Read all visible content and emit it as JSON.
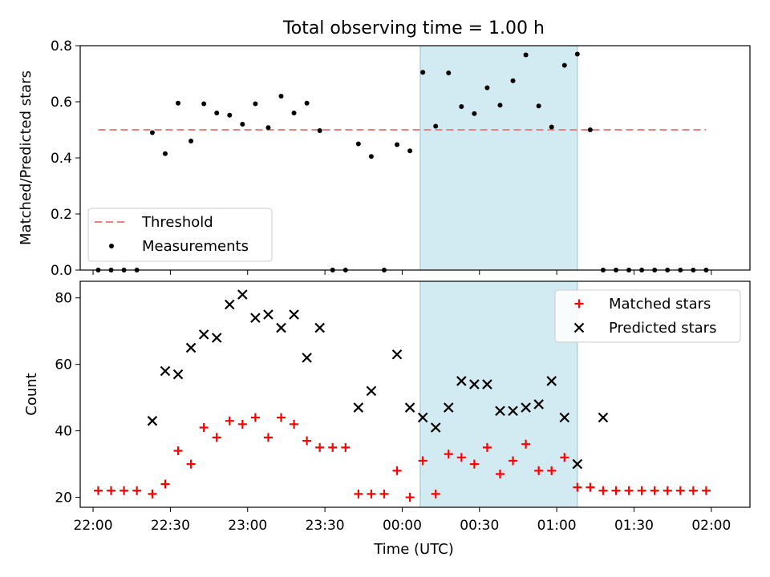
{
  "figure": {
    "title": "Total observing time = 1.00 h",
    "xlabel": "Time (UTC)",
    "x_tick_labels": [
      "22:00",
      "22:30",
      "23:00",
      "23:30",
      "00:00",
      "00:30",
      "01:00",
      "01:30",
      "02:00"
    ]
  },
  "colors": {
    "threshold": "#f08080",
    "measurement": "#000000",
    "matched": "#ff0000",
    "predicted": "#000000",
    "shade": "#add8e6"
  },
  "chart_data": [
    {
      "type": "scatter",
      "panel": "top",
      "title": "Total observing time = 1.00 h",
      "ylabel": "Matched/Predicted stars",
      "xlabel": "",
      "x_unit": "minutes after 22:00 UTC",
      "xlim": [
        -5,
        255
      ],
      "ylim": [
        0,
        0.8
      ],
      "y_ticks": [
        "0.0",
        "0.2",
        "0.4",
        "0.6",
        "0.8"
      ],
      "shaded_interval": [
        127,
        188
      ],
      "legend": {
        "position": "lower left",
        "entries": [
          "Threshold",
          "Measurements"
        ]
      },
      "series": [
        {
          "name": "Threshold",
          "style": "dashed line",
          "x": [
            2,
            238
          ],
          "y": [
            0.5,
            0.5
          ]
        },
        {
          "name": "Measurements",
          "style": "points",
          "x": [
            2,
            7,
            12,
            17,
            23,
            28,
            33,
            38,
            43,
            48,
            53,
            58,
            63,
            68,
            73,
            78,
            83,
            88,
            93,
            98,
            103,
            108,
            113,
            118,
            123,
            128,
            133,
            138,
            143,
            148,
            153,
            158,
            163,
            168,
            173,
            178,
            183,
            188,
            193,
            198,
            203,
            208,
            213,
            218,
            223,
            228,
            233,
            238
          ],
          "y": [
            0,
            0,
            0,
            0,
            0.49,
            0.415,
            0.595,
            0.46,
            0.593,
            0.56,
            0.552,
            0.52,
            0.593,
            0.508,
            0.62,
            0.56,
            0.595,
            0.497,
            0,
            0,
            0.45,
            0.405,
            0,
            0.447,
            0.425,
            0.705,
            0.513,
            0.703,
            0.583,
            0.558,
            0.65,
            0.588,
            0.675,
            0.767,
            0.585,
            0.51,
            0.73,
            0.77,
            0.5,
            0,
            0,
            0,
            0,
            0,
            0,
            0,
            0,
            0
          ]
        }
      ]
    },
    {
      "type": "scatter",
      "panel": "bottom",
      "ylabel": "Count",
      "xlabel": "Time (UTC)",
      "x_unit": "minutes after 22:00 UTC",
      "xlim": [
        -5,
        255
      ],
      "ylim": [
        17,
        85
      ],
      "y_ticks": [
        "20",
        "40",
        "60",
        "80"
      ],
      "shaded_interval": [
        127,
        188
      ],
      "legend": {
        "position": "upper right",
        "entries": [
          "Matched stars",
          "Predicted stars"
        ]
      },
      "series": [
        {
          "name": "Matched stars",
          "marker": "plus",
          "x": [
            2,
            7,
            12,
            17,
            23,
            28,
            33,
            38,
            43,
            48,
            53,
            58,
            63,
            68,
            73,
            78,
            83,
            88,
            93,
            98,
            103,
            108,
            113,
            118,
            123,
            128,
            133,
            138,
            143,
            148,
            153,
            158,
            163,
            168,
            173,
            178,
            183,
            188,
            193,
            198,
            203,
            208,
            213,
            218,
            223,
            228,
            233,
            238
          ],
          "y": [
            22,
            22,
            22,
            22,
            21,
            24,
            34,
            30,
            41,
            38,
            43,
            42,
            44,
            38,
            44,
            42,
            37,
            35,
            35,
            35,
            21,
            21,
            21,
            28,
            20,
            31,
            21,
            33,
            32,
            30,
            35,
            27,
            31,
            36,
            28,
            28,
            32,
            23,
            23,
            22,
            22,
            22,
            22,
            22,
            22,
            22,
            22,
            22
          ]
        },
        {
          "name": "Predicted stars",
          "marker": "x",
          "x": [
            23,
            28,
            33,
            38,
            43,
            48,
            53,
            58,
            63,
            68,
            73,
            78,
            83,
            88,
            103,
            108,
            118,
            123,
            128,
            133,
            138,
            143,
            148,
            153,
            158,
            163,
            168,
            173,
            178,
            183,
            188,
            198
          ],
          "y": [
            43,
            58,
            57,
            65,
            69,
            68,
            78,
            81,
            74,
            75,
            71,
            75,
            62,
            71,
            47,
            52,
            63,
            47,
            44,
            41,
            47,
            55,
            54,
            54,
            46,
            46,
            47,
            48,
            55,
            44,
            30,
            44
          ]
        }
      ]
    }
  ]
}
